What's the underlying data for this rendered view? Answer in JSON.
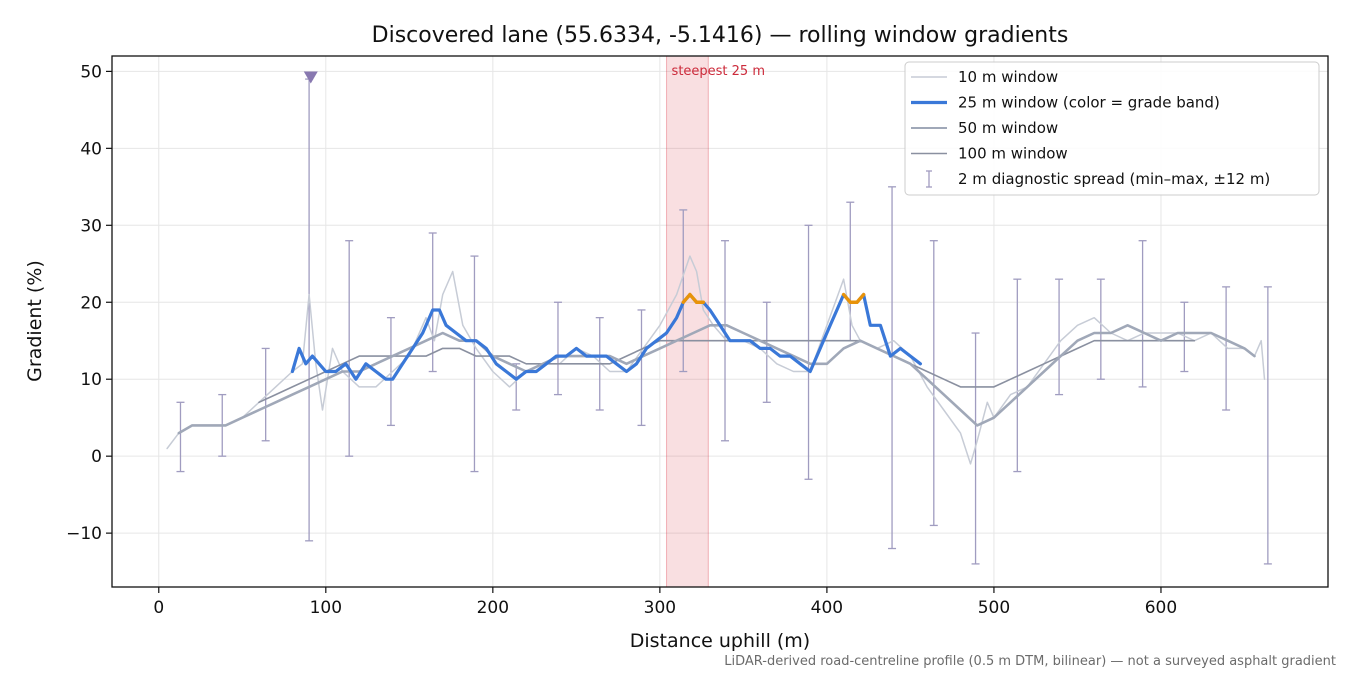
{
  "chart_data": {
    "type": "line",
    "title": "Discovered lane (55.6334, -5.1416) — rolling window gradients",
    "xlabel": "Distance uphill (m)",
    "ylabel": "Gradient (%)",
    "xlim": [
      -28,
      700
    ],
    "ylim": [
      -17,
      52
    ],
    "xticks": [
      0,
      100,
      200,
      300,
      400,
      500,
      600
    ],
    "yticks": [
      -10,
      0,
      10,
      20,
      30,
      40,
      50
    ],
    "grid": true,
    "legend_position": "top-right",
    "footer": "LiDAR-derived road-centreline profile (0.5 m DTM, bilinear) — not a surveyed asphalt gradient",
    "highlight": {
      "label": "steepest 25 m",
      "x_start": 304,
      "x_end": 329,
      "color": "#dc3545"
    },
    "marker": {
      "x": 91,
      "y": 49.2,
      "shape": "down-triangle",
      "color": "#8878b0"
    },
    "series": [
      {
        "name": "10 m window",
        "color": "#c7ccd6",
        "x": [
          5,
          12,
          20,
          30,
          40,
          50,
          60,
          70,
          80,
          86,
          90,
          94,
          98,
          104,
          110,
          120,
          130,
          140,
          150,
          160,
          165,
          170,
          176,
          182,
          190,
          200,
          210,
          220,
          230,
          240,
          250,
          260,
          270,
          280,
          290,
          300,
          310,
          318,
          322,
          326,
          332,
          340,
          350,
          360,
          370,
          380,
          390,
          400,
          405,
          410,
          415,
          420,
          430,
          440,
          450,
          460,
          470,
          480,
          486,
          490,
          496,
          500,
          510,
          520,
          530,
          540,
          550,
          560,
          570,
          580,
          590,
          600,
          610,
          620,
          630,
          640,
          650,
          656,
          660,
          662
        ],
        "values": [
          1,
          3,
          4,
          4,
          4,
          5,
          7,
          9,
          11,
          12,
          21,
          12,
          6,
          14,
          11,
          9,
          9,
          11,
          13,
          18,
          15,
          21,
          24,
          17,
          14,
          11,
          9,
          11,
          12,
          12,
          14,
          13,
          11,
          11,
          14,
          17,
          21,
          26,
          24,
          19,
          17,
          15,
          15,
          14,
          12,
          11,
          11,
          17,
          20,
          23,
          17,
          15,
          14,
          15,
          13,
          9,
          6,
          3,
          -1,
          2,
          7,
          5,
          8,
          9,
          12,
          15,
          17,
          18,
          16,
          15,
          16,
          16,
          16,
          15,
          16,
          14,
          14,
          13,
          15,
          10
        ]
      },
      {
        "name": "25 m window (color = grade band)",
        "color": "#3a78d8",
        "x": [
          80,
          84,
          88,
          92,
          96,
          100,
          106,
          112,
          118,
          124,
          130,
          136,
          140,
          146,
          152,
          158,
          164,
          168,
          172,
          178,
          184,
          190,
          196,
          202,
          208,
          214,
          220,
          226,
          232,
          238,
          244,
          250,
          256,
          262,
          268,
          274,
          280,
          286,
          292,
          298,
          304,
          310,
          314,
          318,
          322,
          326,
          330,
          336,
          342,
          348,
          354,
          360,
          366,
          372,
          378,
          384,
          390,
          396,
          402,
          406,
          410,
          414,
          418,
          422,
          426,
          432,
          438,
          444,
          450,
          456
        ],
        "values": [
          11,
          14,
          12,
          13,
          12,
          11,
          11,
          12,
          10,
          12,
          11,
          10,
          10,
          12,
          14,
          16,
          19,
          19,
          17,
          16,
          15,
          15,
          14,
          12,
          11,
          10,
          11,
          11,
          12,
          13,
          13,
          14,
          13,
          13,
          13,
          12,
          11,
          12,
          14,
          15,
          16,
          18,
          20,
          21,
          20,
          20,
          19,
          17,
          15,
          15,
          15,
          14,
          14,
          13,
          13,
          12,
          11,
          14,
          17,
          19,
          21,
          20,
          20,
          21,
          17,
          17,
          13,
          14,
          13,
          12
        ],
        "highlight_color": "#e8930a"
      },
      {
        "name": "50 m window",
        "color": "#a0a8b8",
        "x": [
          12,
          20,
          30,
          40,
          50,
          60,
          70,
          80,
          90,
          100,
          110,
          120,
          130,
          140,
          150,
          160,
          170,
          180,
          190,
          200,
          210,
          220,
          230,
          240,
          250,
          260,
          270,
          280,
          290,
          300,
          310,
          320,
          330,
          340,
          350,
          360,
          370,
          380,
          390,
          400,
          410,
          420,
          430,
          440,
          450,
          460,
          470,
          480,
          490,
          500,
          510,
          520,
          530,
          540,
          550,
          560,
          570,
          580,
          590,
          600,
          610,
          620,
          630,
          640,
          650,
          656
        ],
        "values": [
          3,
          4,
          4,
          4,
          5,
          6,
          7,
          8,
          9,
          10,
          11,
          11,
          12,
          13,
          14,
          15,
          16,
          15,
          15,
          13,
          12,
          11,
          12,
          13,
          13,
          13,
          13,
          12,
          13,
          14,
          15,
          16,
          17,
          17,
          16,
          15,
          14,
          13,
          12,
          12,
          14,
          15,
          14,
          13,
          12,
          10,
          8,
          6,
          4,
          5,
          7,
          9,
          11,
          13,
          15,
          16,
          16,
          17,
          16,
          15,
          16,
          16,
          16,
          15,
          14,
          13
        ],
        "thickness": "thick"
      },
      {
        "name": "100 m window",
        "color": "#8a90a0",
        "x": [
          60,
          70,
          80,
          90,
          100,
          110,
          120,
          130,
          140,
          150,
          160,
          170,
          180,
          190,
          200,
          210,
          220,
          230,
          240,
          250,
          260,
          270,
          280,
          290,
          300,
          310,
          320,
          330,
          340,
          350,
          360,
          370,
          380,
          390,
          400,
          410,
          420,
          430,
          440,
          450,
          460,
          470,
          480,
          490,
          500,
          510,
          520,
          530,
          540,
          550,
          560,
          570,
          580,
          590,
          600,
          610,
          620
        ],
        "values": [
          7,
          8,
          9,
          10,
          11,
          12,
          13,
          13,
          13,
          13,
          13,
          14,
          14,
          13,
          13,
          13,
          12,
          12,
          12,
          12,
          12,
          12,
          13,
          14,
          15,
          15,
          15,
          15,
          15,
          15,
          15,
          15,
          15,
          15,
          15,
          15,
          15,
          14,
          13,
          12,
          11,
          10,
          9,
          9,
          9,
          10,
          11,
          12,
          13,
          14,
          15,
          15,
          15,
          15,
          15,
          15,
          15
        ]
      },
      {
        "name": "2 m diagnostic spread (min–max, ±12 m)",
        "color": "#a09cc0",
        "x": [
          13,
          38,
          64,
          90,
          114,
          139,
          164,
          189,
          214,
          239,
          264,
          289,
          314,
          339,
          364,
          389,
          414,
          439,
          464,
          489,
          514,
          539,
          564,
          589,
          614,
          639,
          664
        ],
        "min": [
          -2,
          0,
          2,
          -11,
          0,
          4,
          11,
          -2,
          6,
          8,
          6,
          4,
          11,
          2,
          7,
          -3,
          15,
          -12,
          -9,
          -14,
          -2,
          8,
          10,
          9,
          11,
          6,
          -14
        ],
        "max": [
          7,
          8,
          14,
          49,
          28,
          18,
          29,
          26,
          12,
          20,
          18,
          19,
          32,
          28,
          20,
          30,
          33,
          35,
          28,
          16,
          23,
          23,
          23,
          28,
          20,
          22,
          22
        ]
      }
    ]
  }
}
